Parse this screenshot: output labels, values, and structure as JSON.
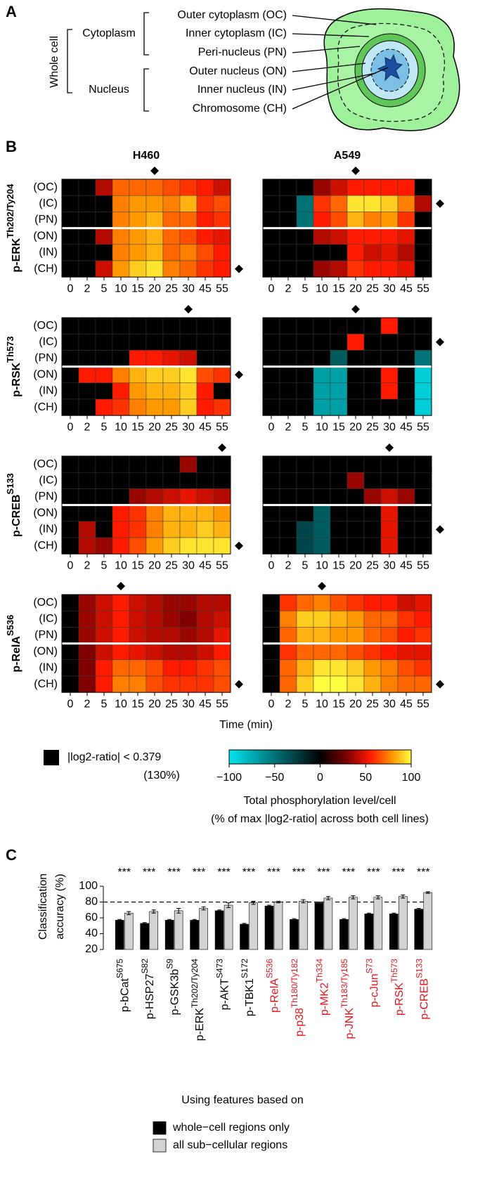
{
  "panel_labels": [
    "A",
    "B",
    "C"
  ],
  "cell_diagram": {
    "whole_cell": "Whole cell",
    "groups": [
      "Cytoplasm",
      "Nucleus"
    ],
    "regions": [
      "Outer cytoplasm (OC)",
      "Inner cytoplasm (IC)",
      "Peri-nucleus (PN)",
      "Outer nucleus (ON)",
      "Inner nucleus (IN)",
      "Chromosome (CH)"
    ]
  },
  "chart_data": [
    {
      "type": "heatmap",
      "columns": [
        "H460",
        "A549"
      ],
      "x": [
        0,
        2,
        5,
        10,
        15,
        20,
        25,
        30,
        45,
        55
      ],
      "rows": [
        "(OC)",
        "(IC)",
        "(PN)",
        "(ON)",
        "(IN)",
        "(CH)"
      ],
      "xlabel": "Time (min)",
      "zlim": [
        -100,
        100
      ],
      "threshold_note": [
        "|log2-ratio| < 0.379",
        "(130%)"
      ],
      "colorbar_ticks": [
        {
          "value": -100,
          "label": "−100"
        },
        {
          "value": -50,
          "label": "−50"
        },
        0,
        50,
        100
      ],
      "colorbar_label": [
        "Total phosphorylation level/cell",
        "(% of max |log2-ratio| across both cell lines)"
      ],
      "panels": [
        {
          "protein": "p-ERK",
          "site": "Th202/Ty204",
          "maps": [
            {
              "peak_time": 20,
              "peak_region": "(CH)",
              "values": [
                [
                  0,
                  0,
                  40,
                  70,
                  70,
                  70,
                  65,
                  60,
                  55,
                  45
                ],
                [
                  0,
                  0,
                  0,
                  75,
                  80,
                  80,
                  75,
                  85,
                  60,
                  65
                ],
                [
                  0,
                  0,
                  0,
                  75,
                  80,
                  85,
                  70,
                  70,
                  55,
                  60
                ],
                [
                  0,
                  0,
                  40,
                  75,
                  80,
                  85,
                  70,
                  65,
                  55,
                  50
                ],
                [
                  0,
                  0,
                  0,
                  75,
                  80,
                  85,
                  70,
                  75,
                  65,
                  55
                ],
                [
                  0,
                  0,
                  45,
                  80,
                  90,
                  95,
                  75,
                  70,
                  60,
                  55
                ]
              ]
            },
            {
              "peak_time": 20,
              "peak_region": "(IC)",
              "values": [
                [
                  0,
                  0,
                  0,
                  35,
                  45,
                  55,
                  55,
                  55,
                  55,
                  0
                ],
                [
                  0,
                  0,
                  -50,
                  60,
                  70,
                  95,
                  95,
                  90,
                  75,
                  40
                ],
                [
                  0,
                  0,
                  -50,
                  55,
                  65,
                  85,
                  75,
                  80,
                  60,
                  0
                ],
                [
                  0,
                  0,
                  0,
                  40,
                  45,
                  55,
                  55,
                  55,
                  50,
                  0
                ],
                [
                  0,
                  0,
                  0,
                  0,
                  0,
                  55,
                  45,
                  50,
                  40,
                  0
                ],
                [
                  0,
                  0,
                  0,
                  35,
                  40,
                  60,
                  55,
                  55,
                  50,
                  0
                ]
              ]
            }
          ]
        },
        {
          "protein": "p-RSK",
          "site": "Th573",
          "maps": [
            {
              "peak_time": 30,
              "peak_region": "(ON)",
              "values": [
                [
                  0,
                  0,
                  0,
                  0,
                  0,
                  0,
                  0,
                  0,
                  0,
                  0
                ],
                [
                  0,
                  0,
                  0,
                  0,
                  0,
                  0,
                  0,
                  0,
                  0,
                  0
                ],
                [
                  0,
                  0,
                  0,
                  0,
                  55,
                  55,
                  50,
                  45,
                  0,
                  0
                ],
                [
                  0,
                  55,
                  55,
                  75,
                  85,
                  90,
                  90,
                  95,
                  65,
                  60
                ],
                [
                  0,
                  0,
                  0,
                  55,
                  80,
                  85,
                  85,
                  90,
                  55,
                  0
                ],
                [
                  0,
                  0,
                  55,
                  60,
                  75,
                  80,
                  80,
                  90,
                  55,
                  60
                ]
              ]
            },
            {
              "peak_time": 20,
              "peak_region": "(IC)",
              "values": [
                [
                  0,
                  0,
                  0,
                  0,
                  0,
                  0,
                  0,
                  55,
                  0,
                  0
                ],
                [
                  0,
                  0,
                  0,
                  0,
                  0,
                  55,
                  0,
                  0,
                  0,
                  0
                ],
                [
                  0,
                  0,
                  0,
                  0,
                  -40,
                  0,
                  0,
                  0,
                  0,
                  -50
                ],
                [
                  0,
                  0,
                  0,
                  -70,
                  -70,
                  0,
                  0,
                  55,
                  0,
                  -90
                ],
                [
                  0,
                  0,
                  0,
                  -70,
                  -70,
                  0,
                  0,
                  55,
                  0,
                  -90
                ],
                [
                  0,
                  0,
                  0,
                  -70,
                  -70,
                  0,
                  0,
                  0,
                  0,
                  -90
                ]
              ]
            }
          ]
        },
        {
          "protein": "p-CREB",
          "site": "S133",
          "maps": [
            {
              "peak_time": 55,
              "peak_region": "(CH)",
              "values": [
                [
                  0,
                  0,
                  0,
                  0,
                  0,
                  0,
                  0,
                  35,
                  0,
                  0
                ],
                [
                  0,
                  0,
                  0,
                  0,
                  0,
                  0,
                  0,
                  0,
                  0,
                  0
                ],
                [
                  0,
                  0,
                  0,
                  0,
                  35,
                  40,
                  45,
                  50,
                  45,
                  40
                ],
                [
                  0,
                  0,
                  0,
                  55,
                  60,
                  75,
                  85,
                  85,
                  85,
                  80
                ],
                [
                  0,
                  40,
                  0,
                  55,
                  60,
                  75,
                  85,
                  85,
                  90,
                  85
                ],
                [
                  0,
                  40,
                  35,
                  55,
                  65,
                  80,
                  90,
                  95,
                  95,
                  95
                ]
              ]
            },
            {
              "peak_time": 30,
              "peak_region": "(IN)",
              "values": [
                [
                  0,
                  0,
                  0,
                  0,
                  0,
                  0,
                  0,
                  0,
                  0,
                  0
                ],
                [
                  0,
                  0,
                  0,
                  0,
                  0,
                  35,
                  0,
                  0,
                  0,
                  0
                ],
                [
                  0,
                  0,
                  0,
                  0,
                  0,
                  0,
                  35,
                  45,
                  35,
                  0
                ],
                [
                  0,
                  0,
                  0,
                  -40,
                  0,
                  0,
                  0,
                  50,
                  0,
                  0
                ],
                [
                  0,
                  0,
                  -30,
                  -40,
                  0,
                  0,
                  0,
                  50,
                  0,
                  0
                ],
                [
                  0,
                  0,
                  -30,
                  -40,
                  0,
                  0,
                  0,
                  50,
                  0,
                  0
                ]
              ]
            }
          ]
        },
        {
          "protein": "p-RelA",
          "site": "S536",
          "maps": [
            {
              "peak_time": 10,
              "peak_region": "(CH)",
              "values": [
                [
                  0,
                  35,
                  45,
                  55,
                  45,
                  40,
                  35,
                  35,
                  40,
                  40
                ],
                [
                  0,
                  35,
                  45,
                  55,
                  45,
                  40,
                  35,
                  30,
                  40,
                  45
                ],
                [
                  0,
                  35,
                  45,
                  55,
                  45,
                  40,
                  40,
                  35,
                  40,
                  50
                ],
                [
                  0,
                  30,
                  45,
                  55,
                  50,
                  45,
                  40,
                  40,
                  45,
                  55
                ],
                [
                  0,
                  30,
                  55,
                  70,
                  70,
                  65,
                  55,
                  55,
                  60,
                  65
                ],
                [
                  0,
                  30,
                  55,
                  75,
                  75,
                  65,
                  60,
                  60,
                  60,
                  65
                ]
              ]
            },
            {
              "peak_time": 10,
              "peak_region": "(CH)",
              "values": [
                [
                  0,
                  60,
                  70,
                  75,
                  65,
                  60,
                  55,
                  55,
                  45,
                  50
                ],
                [
                  0,
                  75,
                  90,
                  90,
                  85,
                  80,
                  70,
                  70,
                  60,
                  55
                ],
                [
                  0,
                  70,
                  85,
                  85,
                  80,
                  80,
                  70,
                  65,
                  55,
                  60
                ],
                [
                  0,
                  60,
                  70,
                  70,
                  70,
                  65,
                  60,
                  55,
                  50,
                  50
                ],
                [
                  0,
                  70,
                  85,
                  95,
                  95,
                  90,
                  80,
                  75,
                  65,
                  60
                ],
                [
                  0,
                  70,
                  90,
                  100,
                  100,
                  95,
                  85,
                  75,
                  70,
                  70
                ]
              ]
            }
          ]
        }
      ]
    },
    {
      "type": "bar",
      "ylabel": [
        "Classification",
        "accuracy (%)"
      ],
      "categories": [
        {
          "name": "p-bCat",
          "site": "S675",
          "color": "#000000"
        },
        {
          "name": "p-HSP27",
          "site": "S82",
          "color": "#000000"
        },
        {
          "name": "p-GSK3b",
          "site": "S9",
          "color": "#000000"
        },
        {
          "name": "p-ERK",
          "site": "Th202/Ty204",
          "color": "#000000"
        },
        {
          "name": "p-AKT",
          "site": "S473",
          "color": "#000000"
        },
        {
          "name": "p-TBK1",
          "site": "S172",
          "color": "#000000"
        },
        {
          "name": "p-RelA",
          "site": "S536",
          "color": "#e8141b"
        },
        {
          "name": "p-p38",
          "site": "Th180/Ty182",
          "color": "#e8141b"
        },
        {
          "name": "p-MK2",
          "site": "Th334",
          "color": "#e8141b"
        },
        {
          "name": "p-JNK",
          "site": "Th183/Ty185",
          "color": "#e8141b"
        },
        {
          "name": "p-cJun",
          "site": "S73",
          "color": "#e8141b"
        },
        {
          "name": "p-RSK",
          "site": "Th573",
          "color": "#e8141b"
        },
        {
          "name": "p-CREB",
          "site": "S133",
          "color": "#e8141b"
        }
      ],
      "series": [
        {
          "name": "whole−cell regions only",
          "color": "#000000",
          "values": [
            57,
            53,
            57,
            57,
            69,
            52,
            75,
            58,
            79,
            58,
            65,
            65,
            71
          ],
          "errors": [
            1,
            1,
            1,
            1,
            1,
            1,
            1,
            1,
            1,
            1,
            1,
            1,
            1
          ]
        },
        {
          "name": "all sub−cellular regions",
          "color": "#d3d3d3",
          "values": [
            66,
            68,
            69,
            72,
            76,
            79,
            80,
            81,
            85,
            86,
            86,
            87,
            92
          ],
          "errors": [
            2,
            2,
            3,
            2,
            3,
            2,
            1,
            2,
            2,
            2,
            2,
            2,
            1
          ]
        }
      ],
      "significance": [
        "***",
        "***",
        "***",
        "***",
        "***",
        "***",
        "***",
        "***",
        "***",
        "***",
        "***",
        "***",
        "***"
      ],
      "reference_line": 80,
      "ylim": [
        20,
        100
      ],
      "yticks": [
        20,
        40,
        60,
        80,
        100
      ],
      "legend_title": "Using features based on"
    }
  ]
}
